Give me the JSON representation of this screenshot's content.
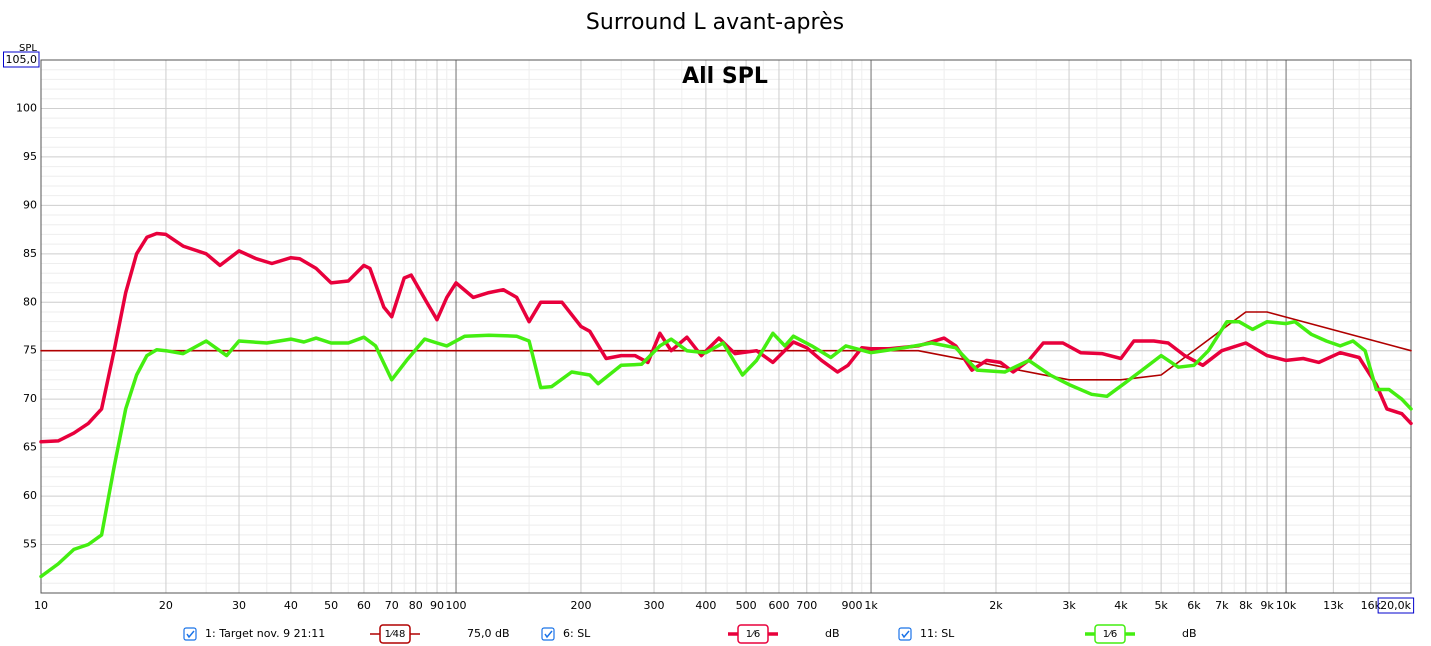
{
  "chart_data": {
    "type": "line",
    "title": "Surround L avant-après",
    "annotation": "All SPL",
    "y_label": "SPL",
    "x_scale": "log",
    "grid": true,
    "xlim": [
      10,
      20000
    ],
    "ylim": [
      50,
      105
    ],
    "xticks": [
      10,
      20,
      30,
      40,
      50,
      60,
      70,
      80,
      90,
      100,
      200,
      300,
      400,
      500,
      600,
      700,
      900,
      {
        "value": 1000,
        "label": "1k"
      },
      {
        "value": 2000,
        "label": "2k"
      },
      {
        "value": 3000,
        "label": "3k"
      },
      {
        "value": 4000,
        "label": "4k"
      },
      {
        "value": 5000,
        "label": "5k"
      },
      {
        "value": 6000,
        "label": "6k"
      },
      {
        "value": 7000,
        "label": "7k"
      },
      {
        "value": 8000,
        "label": "8k"
      },
      {
        "value": 9000,
        "label": "9k"
      },
      {
        "value": 10000,
        "label": "10k"
      },
      {
        "value": 13000,
        "label": "13k"
      },
      {
        "value": 16000,
        "label": "16k"
      },
      {
        "value": 20000,
        "label": "20,0k"
      }
    ],
    "yticks": [
      55,
      60,
      65,
      70,
      75,
      80,
      85,
      90,
      95,
      100,
      {
        "value": 105,
        "label": "105,0"
      }
    ],
    "series": [
      {
        "name": "1: Target nov. 9 21:11",
        "color": "#b00000",
        "width": 1.6,
        "smoothing": "1⁄48",
        "offset_label": "75,0 dB",
        "x": [
          10,
          1300,
          3000,
          4000,
          5000,
          8000,
          9000,
          20000
        ],
        "values": [
          75,
          75,
          72,
          72,
          72.5,
          79,
          79,
          75
        ]
      },
      {
        "name": "6: SL",
        "color": "#e8003c",
        "width": 3.5,
        "smoothing": "1⁄6",
        "offset_label": "dB",
        "x": [
          10,
          11,
          12,
          13,
          14,
          15,
          16,
          17,
          18,
          19,
          20,
          22,
          25,
          27,
          30,
          33,
          36,
          40,
          42,
          46,
          50,
          55,
          60,
          62,
          67,
          70,
          75,
          78,
          85,
          90,
          95,
          100,
          110,
          120,
          130,
          140,
          150,
          160,
          170,
          180,
          200,
          210,
          230,
          250,
          270,
          290,
          310,
          330,
          360,
          390,
          430,
          470,
          530,
          580,
          650,
          700,
          760,
          830,
          880,
          950,
          1000,
          1100,
          1300,
          1500,
          1600,
          1750,
          1900,
          2050,
          2200,
          2400,
          2600,
          2900,
          3200,
          3600,
          4000,
          4300,
          4800,
          5200,
          5700,
          6300,
          7000,
          8000,
          9000,
          10000,
          11000,
          12000,
          13500,
          15000,
          16500,
          17500,
          19000,
          20000
        ],
        "values": [
          65.6,
          65.7,
          66.5,
          67.5,
          69,
          75,
          81,
          85,
          86.7,
          87.1,
          87,
          85.8,
          85,
          83.8,
          85.3,
          84.5,
          84,
          84.6,
          84.5,
          83.5,
          82,
          82.2,
          83.8,
          83.5,
          79.5,
          78.5,
          82.5,
          82.8,
          80,
          78.2,
          80.5,
          82,
          80.5,
          81,
          81.3,
          80.5,
          78,
          80,
          80,
          80,
          77.5,
          77,
          74.2,
          74.5,
          74.5,
          73.8,
          76.8,
          75,
          76.4,
          74.5,
          76.3,
          74.7,
          75,
          73.8,
          75.9,
          75.3,
          74,
          72.8,
          73.5,
          75.3,
          75.2,
          75.2,
          75.5,
          76.3,
          75.5,
          73,
          74,
          73.8,
          72.8,
          74,
          75.8,
          75.8,
          74.8,
          74.7,
          74.2,
          76,
          76,
          75.8,
          74.5,
          73.5,
          75,
          75.8,
          74.5,
          74,
          74.2,
          73.8,
          74.8,
          74.3,
          71.5,
          69,
          68.5,
          67.5
        ]
      },
      {
        "name": "11: SL",
        "color": "#44ee11",
        "width": 3.5,
        "smoothing": "1⁄6",
        "offset_label": "dB",
        "x": [
          10,
          11,
          12,
          13,
          14,
          15,
          16,
          17,
          18,
          19,
          20,
          22,
          25,
          28,
          30,
          35,
          40,
          43,
          46,
          50,
          55,
          60,
          64,
          70,
          76,
          84,
          90,
          95,
          105,
          120,
          140,
          150,
          160,
          170,
          190,
          210,
          220,
          250,
          280,
          310,
          330,
          360,
          400,
          440,
          490,
          530,
          580,
          620,
          650,
          720,
          800,
          870,
          1000,
          1200,
          1400,
          1600,
          1800,
          2100,
          2400,
          2700,
          3000,
          3400,
          3700,
          4100,
          4500,
          5000,
          5500,
          6000,
          6500,
          7200,
          7700,
          8300,
          9000,
          10000,
          10500,
          11500,
          12500,
          13500,
          14500,
          15500,
          16500,
          17700,
          19000,
          20000
        ],
        "values": [
          51.7,
          53,
          54.5,
          55,
          56,
          63,
          69,
          72.5,
          74.5,
          75.1,
          75,
          74.7,
          76,
          74.5,
          76,
          75.8,
          76.2,
          75.9,
          76.3,
          75.8,
          75.8,
          76.4,
          75.5,
          72,
          74,
          76.2,
          75.8,
          75.5,
          76.5,
          76.6,
          76.5,
          76,
          71.2,
          71.3,
          72.8,
          72.5,
          71.6,
          73.5,
          73.6,
          75.5,
          76.2,
          75,
          74.8,
          75.8,
          72.5,
          74,
          76.8,
          75.5,
          76.5,
          75.5,
          74.3,
          75.5,
          74.8,
          75.3,
          75.8,
          75.3,
          73,
          72.8,
          74,
          72.5,
          71.5,
          70.5,
          70.3,
          71.7,
          73,
          74.5,
          73.3,
          73.5,
          75,
          78,
          78,
          77.2,
          78,
          77.8,
          78,
          76.7,
          76,
          75.5,
          76,
          75,
          71,
          71,
          70,
          69
        ]
      }
    ]
  }
}
